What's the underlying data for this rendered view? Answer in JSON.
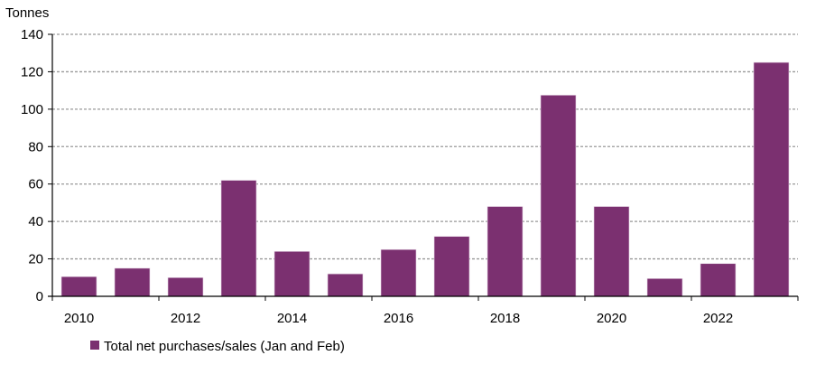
{
  "chart_data": {
    "type": "bar",
    "title": "",
    "ylabel": "Tonnes",
    "xlabel": "",
    "ylim": [
      0,
      140
    ],
    "yticks": [
      0,
      20,
      40,
      60,
      80,
      100,
      120,
      140
    ],
    "grid": true,
    "legend_position": "bottom-left",
    "categories": [
      "2010",
      "2011",
      "2012",
      "2013",
      "2014",
      "2015",
      "2016",
      "2017",
      "2018",
      "2019",
      "2020",
      "2021",
      "2022",
      "2023"
    ],
    "xtick_labels": [
      "2010",
      "2012",
      "2014",
      "2016",
      "2018",
      "2020",
      "2022"
    ],
    "series": [
      {
        "name": "Total net purchases/sales (Jan and Feb)",
        "color": "#7b3070",
        "values": [
          10.5,
          15,
          10,
          62,
          24,
          12,
          25,
          32,
          48,
          107.5,
          48,
          9.5,
          17.5,
          125
        ]
      }
    ]
  }
}
